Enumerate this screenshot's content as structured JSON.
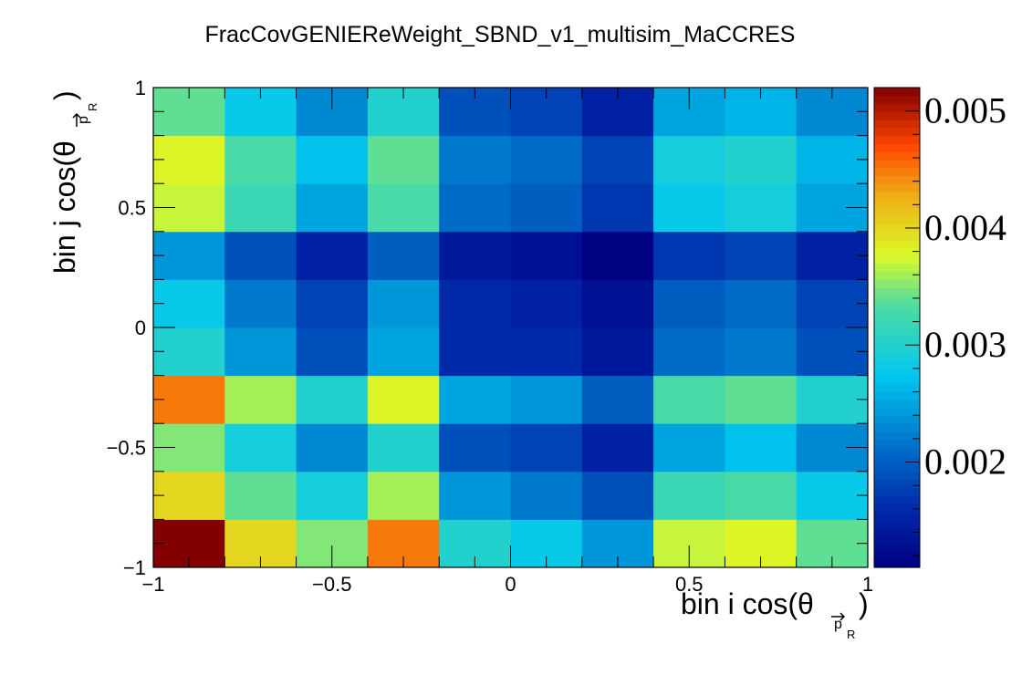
{
  "chart_data": {
    "type": "heatmap",
    "title": "FracCovGENIEReWeight_SBND_v1_multisim_MaCCRES",
    "xlabel": {
      "main": "bin i cos(θ",
      "sub_vec": "p",
      "sub_sub": "R",
      "close": ")"
    },
    "ylabel": {
      "main": "bin j cos(θ",
      "sub_vec": "p",
      "sub_sub": "R",
      "close": ")"
    },
    "xlim": [
      -1,
      1
    ],
    "ylim": [
      -1,
      1
    ],
    "x_bins": 10,
    "y_bins": 10,
    "x_ticks": [
      "−1",
      "−0.5",
      "0",
      "0.5",
      "1"
    ],
    "y_ticks": [
      "−1",
      "−0.5",
      "0",
      "0.5",
      "1"
    ],
    "zlim": [
      0.0011,
      0.0052
    ],
    "z_ticks": [
      "0.002",
      "0.003",
      "0.004",
      "0.005"
    ],
    "z_tick_values": [
      0.002,
      0.003,
      0.004,
      0.005
    ],
    "colormap": "jet",
    "values_rows_bottom_to_top": [
      [
        0.0052,
        0.004,
        0.0035,
        0.0045,
        0.003,
        0.0028,
        0.0024,
        0.0037,
        0.0038,
        0.0034
      ],
      [
        0.004,
        0.0034,
        0.0029,
        0.0036,
        0.0024,
        0.0022,
        0.0019,
        0.0032,
        0.0033,
        0.0028
      ],
      [
        0.0035,
        0.0029,
        0.0023,
        0.003,
        0.0019,
        0.0018,
        0.0015,
        0.0025,
        0.0027,
        0.0023
      ],
      [
        0.0045,
        0.0036,
        0.003,
        0.0038,
        0.0025,
        0.0024,
        0.002,
        0.0033,
        0.0034,
        0.003
      ],
      [
        0.003,
        0.0024,
        0.0019,
        0.0025,
        0.0016,
        0.0016,
        0.0014,
        0.0021,
        0.0022,
        0.0019
      ],
      [
        0.0028,
        0.0022,
        0.0018,
        0.0024,
        0.0016,
        0.0015,
        0.0013,
        0.002,
        0.0021,
        0.0018
      ],
      [
        0.0024,
        0.0019,
        0.0015,
        0.002,
        0.0014,
        0.0013,
        0.0011,
        0.0017,
        0.0018,
        0.0015
      ],
      [
        0.0037,
        0.0032,
        0.0025,
        0.0033,
        0.0021,
        0.002,
        0.0017,
        0.0028,
        0.0029,
        0.0025
      ],
      [
        0.0038,
        0.0033,
        0.0027,
        0.0034,
        0.0022,
        0.0021,
        0.0018,
        0.0029,
        0.003,
        0.0026
      ],
      [
        0.0034,
        0.0028,
        0.0023,
        0.003,
        0.0019,
        0.0018,
        0.0015,
        0.0025,
        0.0026,
        0.0023
      ]
    ],
    "grid": false,
    "legend": "colorbar-right"
  }
}
